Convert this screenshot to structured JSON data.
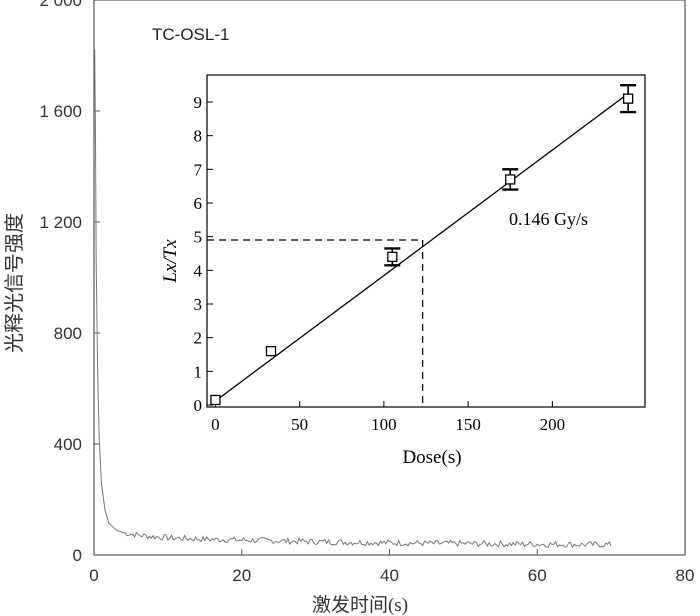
{
  "chart_data": [
    {
      "type": "line",
      "title": "TC-OSL-1",
      "xlabel": "激发时间(s)",
      "ylabel": "光释光信号强度",
      "xlim": [
        0,
        80
      ],
      "ylim": [
        0,
        2000
      ],
      "x_ticks": [
        "0",
        "20",
        "40",
        "60",
        "80"
      ],
      "y_ticks": [
        "0",
        "400",
        "800",
        "1 200",
        "1 600",
        "2 000"
      ],
      "series": [
        {
          "x": [
            0.1,
            0.2,
            0.3,
            0.5,
            0.7,
            1.0,
            1.5,
            2.0,
            3.0,
            4.0,
            6.0,
            8.0,
            10,
            15,
            20,
            25,
            30,
            35,
            40,
            45,
            50,
            55,
            60,
            65,
            70
          ],
          "y": [
            1820,
            1500,
            1050,
            650,
            420,
            260,
            160,
            115,
            90,
            80,
            72,
            66,
            62,
            57,
            54,
            51,
            48,
            46,
            44,
            42,
            41,
            40,
            39,
            38,
            37
          ]
        }
      ],
      "grid": false
    },
    {
      "type": "scatter",
      "xlabel": "Dose(s)",
      "ylabel": "Lx/Tx",
      "xlim": [
        -5,
        255
      ],
      "ylim": [
        0,
        10
      ],
      "x_ticks": [
        "0",
        "50",
        "100",
        "150",
        "200"
      ],
      "y_ticks": [
        "0",
        "1",
        "2",
        "3",
        "4",
        "5",
        "6",
        "7",
        "8",
        "9"
      ],
      "annotation": "0.146 Gy/s",
      "points": [
        {
          "x": 0,
          "y": 0.15,
          "err": 0.05
        },
        {
          "x": 33,
          "y": 1.6,
          "err": 0.05
        },
        {
          "x": 105,
          "y": 4.4,
          "err": 0.25
        },
        {
          "x": 175,
          "y": 6.7,
          "err": 0.3
        },
        {
          "x": 245,
          "y": 9.1,
          "err": 0.4
        }
      ],
      "fit_line": {
        "x": [
          0,
          245
        ],
        "y": [
          0.12,
          9.25
        ]
      },
      "reference": {
        "x": 123,
        "y": 4.9
      },
      "grid": false
    }
  ]
}
